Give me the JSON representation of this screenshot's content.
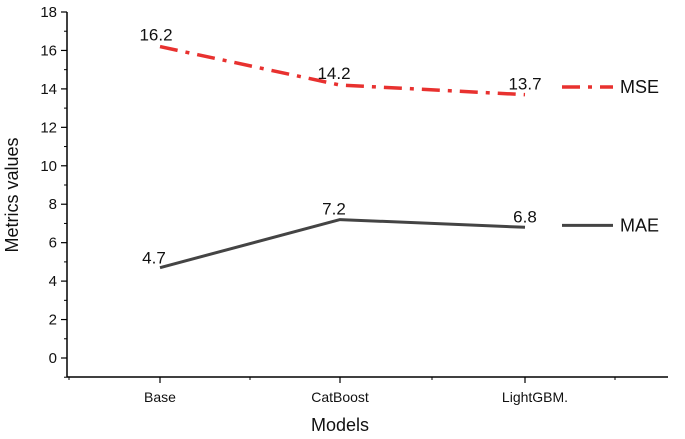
{
  "chart_data": {
    "type": "line",
    "categories": [
      "Base",
      "CatBoost",
      "LightGBM."
    ],
    "series": [
      {
        "name": "MSE",
        "values": [
          16.2,
          14.2,
          13.7
        ],
        "data_labels": [
          "16.2",
          "14.2",
          "13.7"
        ],
        "color": "#e8312f",
        "style": "dash-dot"
      },
      {
        "name": "MAE",
        "values": [
          4.7,
          7.2,
          6.8
        ],
        "data_labels": [
          "4.7",
          "7.2",
          "6.8"
        ],
        "color": "#444444",
        "style": "solid"
      }
    ],
    "xlabel": "Models",
    "ylabel": "Metrics values",
    "ylim": [
      0,
      18
    ],
    "yticks": [
      0,
      2,
      4,
      6,
      8,
      10,
      12,
      14,
      16,
      18
    ],
    "ytick_labels": [
      "0",
      "2",
      "4",
      "6",
      "8",
      "10",
      "12",
      "14",
      "16",
      "18"
    ],
    "grid": false,
    "legend": "right, inline beside each series"
  }
}
